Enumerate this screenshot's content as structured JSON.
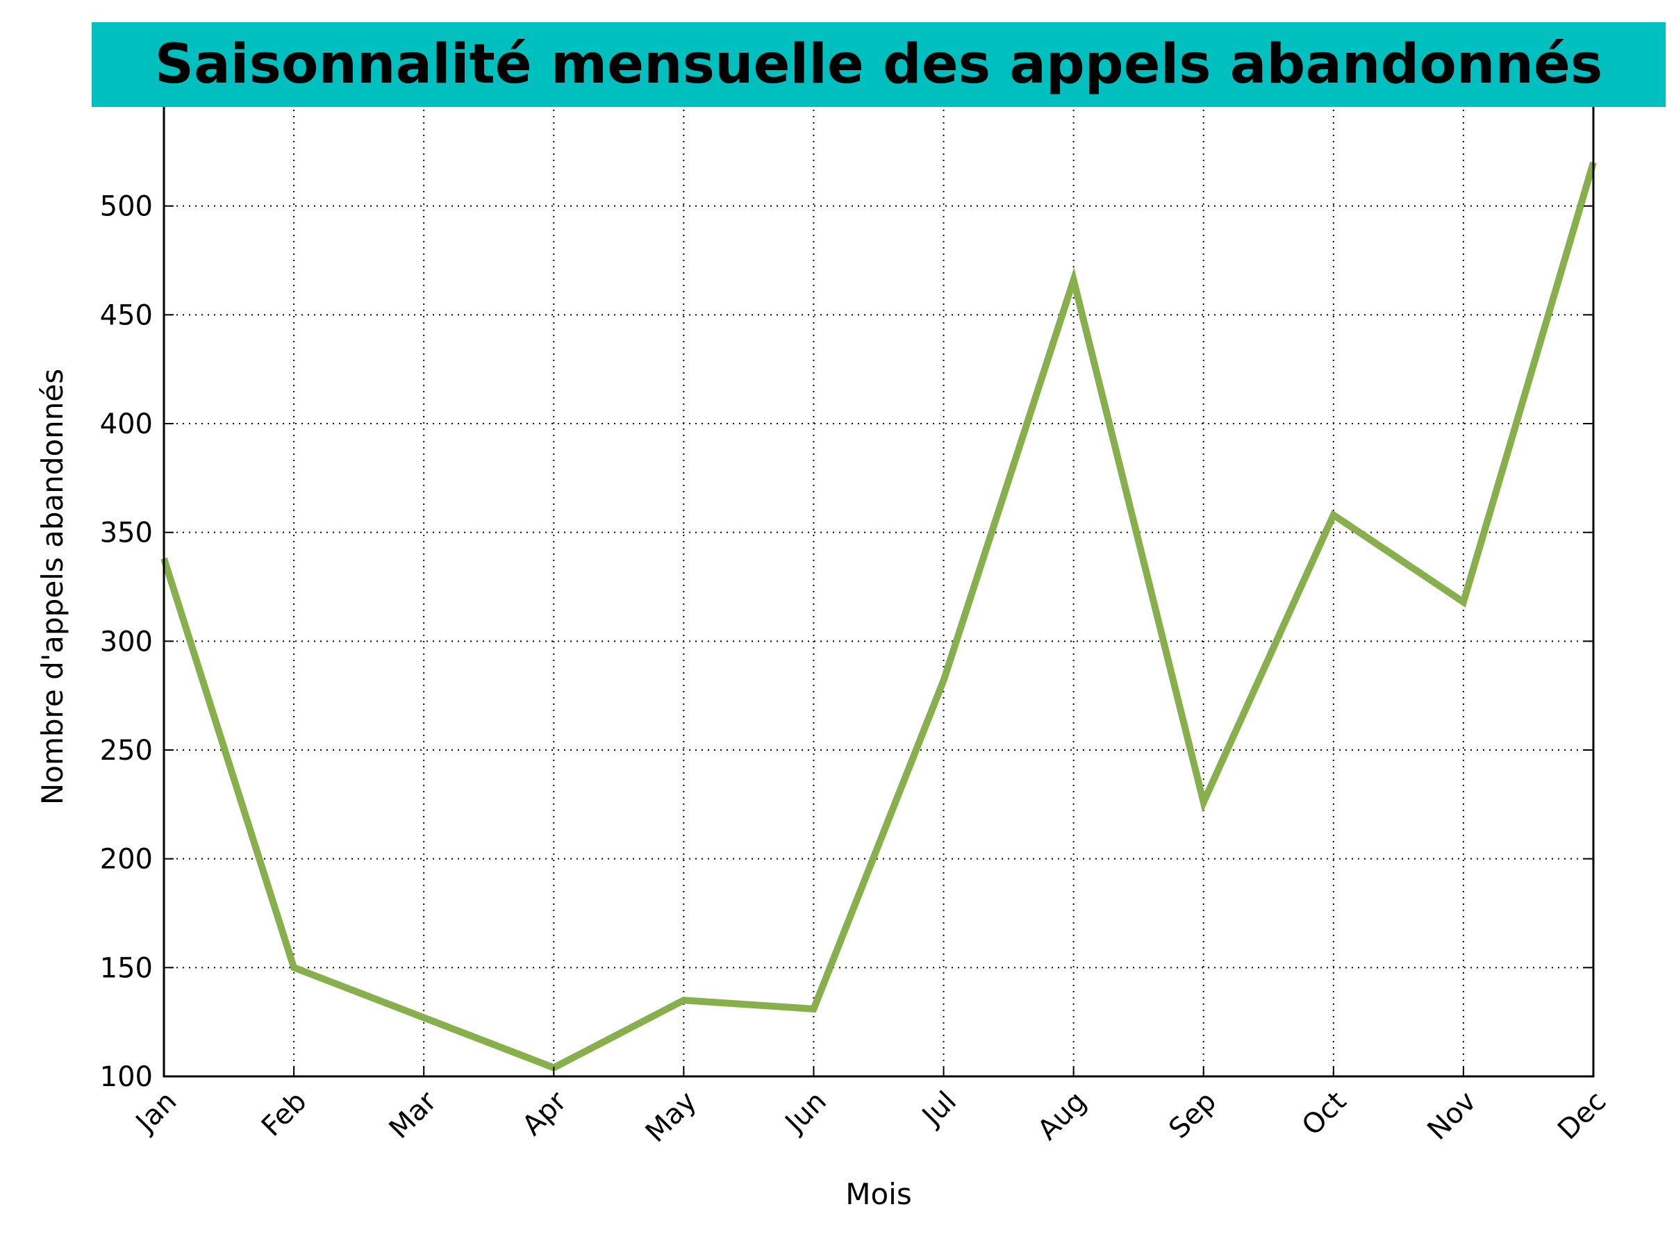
{
  "chart_data": {
    "type": "line",
    "title": "Saisonnalité mensuelle des appels abandonnés",
    "xlabel": "Mois",
    "ylabel": "Nombre d'appels abandonnés",
    "categories": [
      "Jan",
      "Feb",
      "Mar",
      "Apr",
      "May",
      "Jun",
      "Jul",
      "Aug",
      "Sep",
      "Oct",
      "Nov",
      "Dec"
    ],
    "series": [
      {
        "values": [
          338,
          150,
          127,
          104,
          135,
          131,
          282,
          466,
          226,
          358,
          318,
          520
        ]
      }
    ],
    "ylim": [
      100,
      550
    ],
    "yticks": [
      100,
      150,
      200,
      250,
      300,
      350,
      400,
      450,
      500
    ],
    "grid": true,
    "legend": "none",
    "line_color": "#87b04c",
    "title_background": "#00bfbf"
  }
}
